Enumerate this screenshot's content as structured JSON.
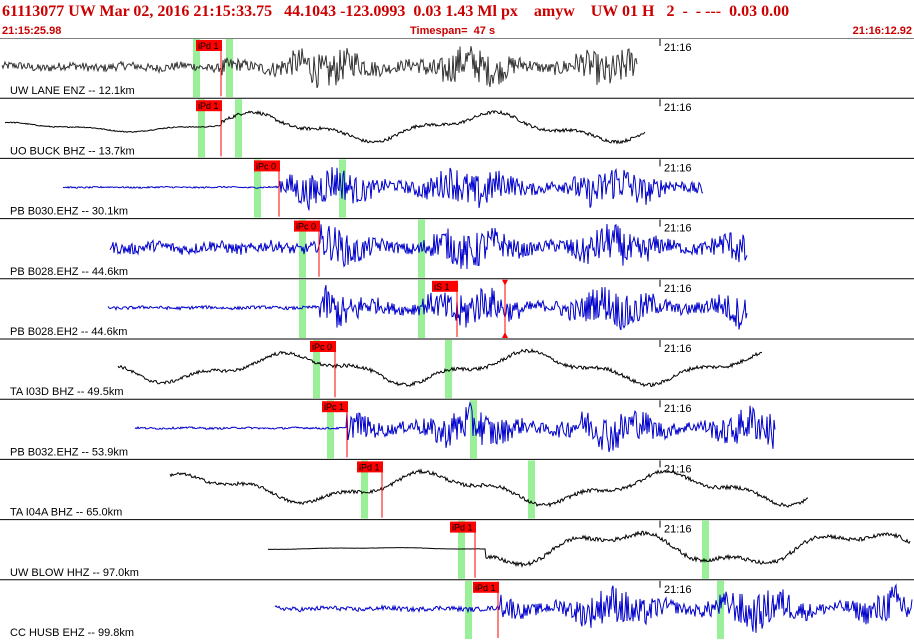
{
  "header": {
    "event_id": "61113077",
    "network": "UW",
    "date": "Mar 02, 2016",
    "time": "21:15:33.75",
    "lat": "44.1043",
    "lon": "-123.0993",
    "values": "0.03 1.43",
    "mag_type": "Ml",
    "etype": "px",
    "author": "amyw",
    "source": "UW 01 H",
    "count": "2",
    "dashes": "-  - ---",
    "tail": "0.03 0.00",
    "start_time": "21:15:25.98",
    "timespan": "Timespan=  47 s",
    "end_time": "21:16:12.92"
  },
  "colors": {
    "header_text": "#cc0000",
    "pick_flag": "#ff0000",
    "pick_bar": "#99f099",
    "trace_blue": "#0000cc",
    "trace_black": "#000000",
    "trace_gray": "#333333",
    "separator": "#000000"
  },
  "tick_label": "21:16",
  "channels": [
    {
      "label": "UW LANE ENZ -- 12.1km",
      "color": "gray",
      "picks": [
        {
          "label": "iPd 1",
          "x": 196
        }
      ],
      "bars": [
        196,
        229
      ],
      "trace": {
        "start": 2,
        "end": 637,
        "onset": 222,
        "amp_pre": 0.22,
        "amp_post": 0.95,
        "wave": "noise"
      }
    },
    {
      "label": "UO BUCK BHZ -- 13.7km",
      "color": "black",
      "picks": [
        {
          "label": "iPd 1",
          "x": 196
        }
      ],
      "bars": [
        201,
        238
      ],
      "trace": {
        "start": 5,
        "end": 645,
        "onset": 222,
        "amp_pre": 0.25,
        "amp_post": 0.8,
        "wave": "smooth"
      }
    },
    {
      "label": "PB B030.EHZ -- 30.1km",
      "color": "blue",
      "picks": [
        {
          "label": "iPc 0",
          "x": 254
        }
      ],
      "bars": [
        257,
        342
      ],
      "trace": {
        "start": 63,
        "end": 703,
        "onset": 280,
        "amp_pre": 0.04,
        "amp_post": 1.0,
        "wave": "noise"
      }
    },
    {
      "label": "PB B028.EHZ -- 44.6km",
      "color": "blue",
      "picks": [
        {
          "label": "iPc 0",
          "x": 294
        }
      ],
      "bars": [
        302,
        421
      ],
      "trace": {
        "start": 110,
        "end": 747,
        "onset": 320,
        "amp_pre": 0.3,
        "amp_post": 1.0,
        "wave": "noise"
      }
    },
    {
      "label": "PB B028.EH2 -- 44.6km",
      "color": "blue",
      "picks": [
        {
          "label": "iS 1",
          "x": 432
        }
      ],
      "bars": [
        302,
        421
      ],
      "marker_x": 505,
      "trace": {
        "start": 108,
        "end": 747,
        "onset": 320,
        "amp_pre": 0.08,
        "amp_post": 1.0,
        "wave": "noise"
      }
    },
    {
      "label": "TA I03D BHZ -- 49.5km",
      "color": "black",
      "picks": [
        {
          "label": "iPc 0",
          "x": 310
        }
      ],
      "bars": [
        316,
        448
      ],
      "trace": {
        "start": 118,
        "end": 762,
        "onset": 336,
        "amp_pre": 0.8,
        "amp_post": 0.9,
        "wave": "smooth"
      }
    },
    {
      "label": "PB B032.EHZ -- 53.9km",
      "color": "blue",
      "picks": [
        {
          "label": "iPc 1",
          "x": 322
        }
      ],
      "bars": [
        330,
        473
      ],
      "trace": {
        "start": 135,
        "end": 775,
        "onset": 347,
        "amp_pre": 0.05,
        "amp_post": 1.0,
        "wave": "noise"
      }
    },
    {
      "label": "TA I04A BHZ -- 65.0km",
      "color": "black",
      "picks": [
        {
          "label": "iPd 1",
          "x": 357
        }
      ],
      "bars": [
        364,
        531
      ],
      "trace": {
        "start": 170,
        "end": 808,
        "onset": 383,
        "amp_pre": 0.8,
        "amp_post": 0.9,
        "wave": "smooth"
      }
    },
    {
      "label": "UW BLOW HHZ -- 97.0km",
      "color": "black",
      "picks": [
        {
          "label": "iPd 1",
          "x": 450
        }
      ],
      "bars": [
        461,
        705
      ],
      "trace": {
        "start": 268,
        "end": 910,
        "onset": 486,
        "amp_pre": 0.05,
        "amp_post": 1.0,
        "wave": "smooth"
      }
    },
    {
      "label": "CC HUSB EHZ -- 99.8km",
      "color": "blue",
      "picks": [
        {
          "label": "iPd 1",
          "x": 473
        }
      ],
      "bars": [
        468,
        720
      ],
      "trace": {
        "start": 275,
        "end": 912,
        "onset": 500,
        "amp_pre": 0.12,
        "amp_post": 1.0,
        "wave": "noise"
      }
    }
  ]
}
